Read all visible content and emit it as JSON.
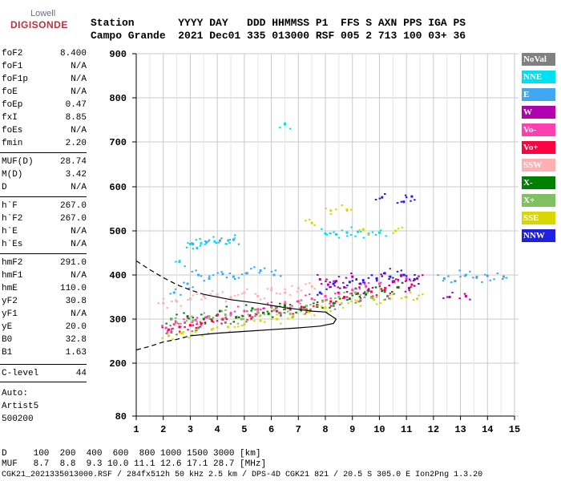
{
  "logo": {
    "brand": "Lowell",
    "product": "DIGISONDE"
  },
  "header": {
    "line1": "Station       YYYY DAY   DDD HHMMSS P1  FFS S AXN PPS IGA PS",
    "line2": "Campo Grande  2021 Dec01 335 013000 RSF 005 2 713 100 03+ 36"
  },
  "params": [
    {
      "key": "foF2",
      "value": "8.400"
    },
    {
      "key": "foF1",
      "value": "N/A"
    },
    {
      "key": "foF1p",
      "value": "N/A"
    },
    {
      "key": "foE",
      "value": "N/A"
    },
    {
      "key": "foEp",
      "value": "0.47"
    },
    {
      "key": "fxI",
      "value": "8.85"
    },
    {
      "key": "foEs",
      "value": "N/A"
    },
    {
      "key": "fmin",
      "value": "2.20"
    },
    {
      "key": "MUF(D)",
      "value": "28.74"
    },
    {
      "key": "M(D)",
      "value": "3.42"
    },
    {
      "key": "D",
      "value": "N/A"
    },
    {
      "key": "h`F",
      "value": "267.0"
    },
    {
      "key": "h`F2",
      "value": "267.0"
    },
    {
      "key": "h`E",
      "value": "N/A"
    },
    {
      "key": "h`Es",
      "value": "N/A"
    },
    {
      "key": "hmF2",
      "value": "291.0"
    },
    {
      "key": "hmF1",
      "value": "N/A"
    },
    {
      "key": "hmE",
      "value": "110.0"
    },
    {
      "key": "yF2",
      "value": "30.8"
    },
    {
      "key": "yF1",
      "value": "N/A"
    },
    {
      "key": "yE",
      "value": "20.0"
    },
    {
      "key": "B0",
      "value": "32.8"
    },
    {
      "key": "B1",
      "value": "1.63"
    },
    {
      "key": "C-level",
      "value": "44"
    }
  ],
  "auto": {
    "line1": "Auto:",
    "line2": "Artist5",
    "line3": "500200"
  },
  "legend": [
    {
      "label": "NoVal",
      "color": "#808080"
    },
    {
      "label": "NNE",
      "color": "#00e0f0"
    },
    {
      "label": "E",
      "color": "#40a8f0"
    },
    {
      "label": "W",
      "color": "#b000b0"
    },
    {
      "label": "Vo-",
      "color": "#ff40b0"
    },
    {
      "label": "Vo+",
      "color": "#ff0040"
    },
    {
      "label": "SSW",
      "color": "#ffb0b0"
    },
    {
      "label": "X-",
      "color": "#008000"
    },
    {
      "label": "X+",
      "color": "#80c060"
    },
    {
      "label": "SSE",
      "color": "#d8d800"
    },
    {
      "label": "NNW",
      "color": "#2020e0"
    }
  ],
  "bottom": {
    "d_line": "D     100  200  400  600  800 1000 1500 3000 [km]",
    "muf_line": "MUF   8.7  8.8  9.3 10.0 11.1 12.6 17.1 28.7 [MHz]",
    "footer": "CGK21_2021335013000.RSF / 284fx512h 50 kHz 2.5 km / DPS-4D CGK21 821 / 20.5 S 305.0 E Ion2Png 1.3.20"
  },
  "chart_data": {
    "type": "scatter",
    "xlim": [
      0.6,
      15.2
    ],
    "ylim": [
      80,
      900
    ],
    "xticks": [
      1,
      2,
      3,
      4,
      5,
      6,
      7,
      8,
      9,
      10,
      11,
      12,
      13,
      14,
      15
    ],
    "yticks": [
      80,
      200,
      300,
      400,
      500,
      600,
      700,
      800,
      900
    ],
    "grid": true,
    "legend_position": "right",
    "clusters": [
      {
        "series": "Vo-",
        "points": [
          [
            2.1,
            280
          ],
          [
            2.4,
            288
          ],
          [
            2.8,
            292
          ],
          [
            3.2,
            298
          ],
          [
            3.6,
            304
          ],
          [
            4.0,
            308
          ],
          [
            4.5,
            312
          ],
          [
            5.0,
            318
          ],
          [
            5.5,
            322
          ],
          [
            6.0,
            328
          ],
          [
            6.5,
            334
          ],
          [
            7.0,
            340
          ],
          [
            7.5,
            346
          ],
          [
            8.0,
            352
          ],
          [
            8.5,
            358
          ],
          [
            9.0,
            366
          ],
          [
            9.5,
            374
          ],
          [
            10.0,
            380
          ],
          [
            10.5,
            386
          ],
          [
            11.0,
            392
          ]
        ]
      },
      {
        "series": "Vo+",
        "points": [
          [
            2.2,
            276
          ],
          [
            2.6,
            282
          ],
          [
            3.0,
            286
          ],
          [
            3.4,
            290
          ],
          [
            3.8,
            296
          ],
          [
            4.2,
            300
          ],
          [
            4.7,
            304
          ],
          [
            5.2,
            308
          ],
          [
            5.7,
            314
          ],
          [
            6.2,
            318
          ],
          [
            6.7,
            322
          ],
          [
            7.2,
            326
          ],
          [
            7.7,
            332
          ],
          [
            8.2,
            340
          ],
          [
            8.7,
            350
          ],
          [
            9.2,
            358
          ],
          [
            9.7,
            362
          ],
          [
            10.2,
            366
          ],
          [
            10.7,
            372
          ],
          [
            11.2,
            378
          ]
        ]
      },
      {
        "series": "W",
        "points": [
          [
            7.8,
            390
          ],
          [
            8.1,
            378
          ],
          [
            8.4,
            386
          ],
          [
            8.7,
            372
          ],
          [
            9.0,
            396
          ],
          [
            9.3,
            380
          ],
          [
            9.6,
            366
          ],
          [
            9.9,
            392
          ],
          [
            10.2,
            404
          ],
          [
            10.5,
            384
          ],
          [
            10.8,
            398
          ],
          [
            11.1,
            370
          ],
          [
            11.4,
            392
          ],
          [
            12.6,
            350
          ],
          [
            13.2,
            352
          ]
        ]
      },
      {
        "series": "E",
        "points": [
          [
            2.4,
            360
          ],
          [
            2.9,
            380
          ],
          [
            3.3,
            400
          ],
          [
            3.7,
            392
          ],
          [
            4.2,
            402
          ],
          [
            4.6,
            396
          ],
          [
            5.1,
            404
          ],
          [
            5.6,
            410
          ],
          [
            6.1,
            400
          ],
          [
            12.4,
            392
          ],
          [
            12.8,
            386
          ],
          [
            13.2,
            400
          ],
          [
            13.6,
            394
          ],
          [
            14.0,
            398
          ],
          [
            14.6,
            396
          ],
          [
            3.1,
            470
          ],
          [
            3.6,
            474
          ],
          [
            4.1,
            478
          ],
          [
            4.6,
            480
          ]
        ]
      },
      {
        "series": "NNE",
        "points": [
          [
            2.6,
            430
          ],
          [
            3.0,
            470
          ],
          [
            3.4,
            472
          ],
          [
            3.9,
            476
          ],
          [
            4.4,
            478
          ],
          [
            8.0,
            494
          ],
          [
            8.4,
            492
          ],
          [
            8.8,
            496
          ],
          [
            9.2,
            498
          ],
          [
            9.6,
            492
          ],
          [
            10.0,
            496
          ],
          [
            6.5,
            740
          ]
        ]
      },
      {
        "series": "SSE",
        "points": [
          [
            2.2,
            262
          ],
          [
            2.7,
            268
          ],
          [
            3.2,
            272
          ],
          [
            3.8,
            276
          ],
          [
            4.4,
            282
          ],
          [
            5.0,
            288
          ],
          [
            5.6,
            296
          ],
          [
            6.2,
            300
          ],
          [
            6.8,
            306
          ],
          [
            7.4,
            316
          ],
          [
            8.0,
            326
          ],
          [
            8.6,
            336
          ],
          [
            9.2,
            340
          ],
          [
            9.8,
            344
          ],
          [
            10.4,
            346
          ],
          [
            11.0,
            350
          ],
          [
            11.4,
            346
          ],
          [
            7.5,
            518
          ],
          [
            8.2,
            546
          ],
          [
            8.8,
            548
          ],
          [
            9.4,
            502
          ],
          [
            10.6,
            500
          ]
        ]
      },
      {
        "series": "SSW",
        "points": [
          [
            2.0,
            336
          ],
          [
            2.5,
            340
          ],
          [
            3.0,
            346
          ],
          [
            3.5,
            352
          ],
          [
            4.0,
            356
          ],
          [
            4.5,
            348
          ],
          [
            5.0,
            360
          ],
          [
            5.5,
            352
          ],
          [
            6.0,
            366
          ],
          [
            6.5,
            360
          ],
          [
            7.0,
            370
          ],
          [
            7.5,
            374
          ]
        ]
      },
      {
        "series": "X-",
        "points": [
          [
            2.3,
            300
          ],
          [
            2.9,
            306
          ],
          [
            3.5,
            300
          ],
          [
            4.1,
            318
          ],
          [
            4.7,
            304
          ],
          [
            5.3,
            324
          ],
          [
            5.9,
            312
          ],
          [
            6.5,
            330
          ],
          [
            7.1,
            320
          ],
          [
            7.7,
            328
          ],
          [
            8.3,
            336
          ],
          [
            8.9,
            346
          ],
          [
            9.5,
            356
          ],
          [
            10.1,
            364
          ],
          [
            10.7,
            372
          ]
        ]
      },
      {
        "series": "X+",
        "points": [
          [
            2.5,
            292
          ],
          [
            3.1,
            296
          ],
          [
            3.7,
            306
          ],
          [
            4.3,
            310
          ],
          [
            4.9,
            300
          ],
          [
            5.5,
            316
          ],
          [
            6.1,
            320
          ],
          [
            6.7,
            312
          ],
          [
            7.3,
            330
          ],
          [
            7.9,
            340
          ],
          [
            8.5,
            350
          ],
          [
            9.1,
            360
          ],
          [
            9.7,
            350
          ]
        ]
      },
      {
        "series": "NNW",
        "points": [
          [
            7.8,
            360
          ],
          [
            8.3,
            380
          ],
          [
            8.9,
            384
          ],
          [
            9.4,
            388
          ],
          [
            9.9,
            392
          ],
          [
            10.4,
            396
          ],
          [
            10.9,
            400
          ],
          [
            11.3,
            390
          ],
          [
            10.1,
            576
          ],
          [
            11.2,
            578
          ],
          [
            10.9,
            566
          ]
        ]
      },
      {
        "series": "NoVal",
        "points": [
          [
            2.3,
            270
          ],
          [
            3.3,
            280
          ],
          [
            4.3,
            292
          ],
          [
            5.3,
            304
          ],
          [
            6.3,
            314
          ],
          [
            7.3,
            322
          ],
          [
            8.3,
            330
          ],
          [
            9.3,
            342
          ],
          [
            10.3,
            352
          ]
        ]
      }
    ],
    "profile_curves": {
      "solid_bottom": [
        [
          3.0,
          262
        ],
        [
          4.0,
          268
        ],
        [
          5.0,
          272
        ],
        [
          6.0,
          276
        ],
        [
          7.0,
          280
        ],
        [
          7.8,
          284
        ],
        [
          8.3,
          290
        ],
        [
          8.4,
          300
        ]
      ],
      "dashed_bottom": [
        [
          1.0,
          230
        ],
        [
          1.5,
          238
        ],
        [
          2.0,
          248
        ],
        [
          2.5,
          254
        ],
        [
          3.0,
          262
        ]
      ],
      "dashed_top": [
        [
          1.0,
          432
        ],
        [
          1.5,
          412
        ],
        [
          2.0,
          394
        ],
        [
          2.5,
          378
        ],
        [
          3.0,
          366
        ],
        [
          3.5,
          356
        ]
      ],
      "solid_top": [
        [
          3.5,
          356
        ],
        [
          4.5,
          344
        ],
        [
          5.5,
          336
        ],
        [
          6.5,
          326
        ],
        [
          7.5,
          318
        ],
        [
          8.0,
          316
        ],
        [
          8.4,
          300
        ]
      ]
    }
  }
}
